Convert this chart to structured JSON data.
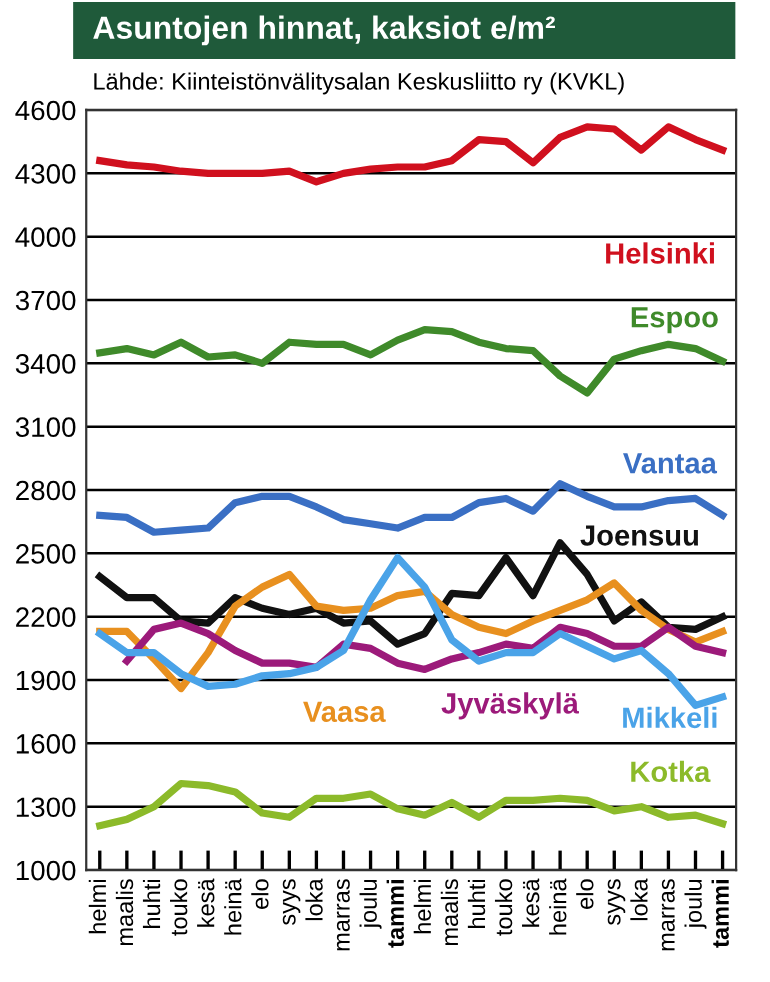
{
  "chart_data": {
    "type": "line",
    "title": "Asuntojen hinnat, kaksiot e/m²",
    "annotations": [
      "Lähde: Kiinteistönvälitysalan Keskusliitto ry (KVKL)"
    ],
    "categories": [
      "helmi",
      "maalis",
      "huhti",
      "touko",
      "kesä",
      "heinä",
      "elo",
      "syys",
      "loka",
      "marras",
      "joulu",
      "tammi",
      "helmi",
      "maalis",
      "huhti",
      "touko",
      "kesä",
      "heinä",
      "elo",
      "syys",
      "loka",
      "marras",
      "joulu",
      "tammi"
    ],
    "series": [
      {
        "name": "Helsinki",
        "color": "#d0101e",
        "values": [
          4360,
          4340,
          4330,
          4310,
          4300,
          4300,
          4300,
          4310,
          4260,
          4300,
          4320,
          4330,
          4330,
          4360,
          4460,
          4450,
          4350,
          4470,
          4520,
          4510,
          4410,
          4520,
          4460,
          4410
        ]
      },
      {
        "name": "Espoo",
        "color": "#3f8a2a",
        "values": [
          3450,
          3470,
          3440,
          3500,
          3430,
          3440,
          3400,
          3500,
          3490,
          3490,
          3440,
          3510,
          3560,
          3550,
          3500,
          3470,
          3460,
          3340,
          3260,
          3420,
          3460,
          3490,
          3470,
          3410
        ]
      },
      {
        "name": "Vantaa",
        "color": "#3a6fc4",
        "values": [
          2680,
          2670,
          2600,
          2610,
          2620,
          2740,
          2770,
          2770,
          2720,
          2660,
          2640,
          2620,
          2670,
          2670,
          2740,
          2760,
          2700,
          2830,
          2770,
          2720,
          2720,
          2750,
          2760,
          2680
        ]
      },
      {
        "name": "Joensuu",
        "color": "#111111",
        "values": [
          2390,
          2290,
          2290,
          2180,
          2170,
          2290,
          2240,
          2210,
          2240,
          2170,
          2180,
          2070,
          2120,
          2310,
          2300,
          2480,
          2300,
          2550,
          2400,
          2180,
          2270,
          2150,
          2140,
          2200
        ]
      },
      {
        "name": "Vaasa",
        "color": "#e8901f",
        "values": [
          2130,
          2130,
          2000,
          1860,
          2030,
          2250,
          2340,
          2400,
          2250,
          2230,
          2240,
          2300,
          2320,
          2210,
          2150,
          2120,
          2180,
          2230,
          2280,
          2360,
          2230,
          2140,
          2080,
          2130
        ]
      },
      {
        "name": "Jyväskylä",
        "color": "#9c1a7a",
        "values": [
          null,
          1990,
          2140,
          2170,
          2120,
          2040,
          1980,
          1980,
          1960,
          2070,
          2050,
          1980,
          1950,
          2000,
          2030,
          2070,
          2050,
          2150,
          2120,
          2060,
          2060,
          2150,
          2060,
          2030
        ]
      },
      {
        "name": "Mikkeli",
        "color": "#4aa3e8",
        "values": [
          2120,
          2030,
          2030,
          1930,
          1870,
          1880,
          1920,
          1930,
          1960,
          2040,
          2280,
          2480,
          2340,
          2090,
          1990,
          2030,
          2030,
          2120,
          2060,
          2000,
          2040,
          1930,
          1780,
          1820
        ]
      },
      {
        "name": "Kotka",
        "color": "#8cba2a",
        "values": [
          1210,
          1240,
          1300,
          1410,
          1400,
          1370,
          1270,
          1250,
          1340,
          1340,
          1360,
          1290,
          1260,
          1320,
          1250,
          1330,
          1330,
          1340,
          1330,
          1280,
          1300,
          1250,
          1260,
          1220
        ]
      }
    ],
    "ylim": [
      1000,
      4600
    ],
    "yticks": [
      1000,
      1300,
      1600,
      1900,
      2200,
      2500,
      2800,
      3100,
      3400,
      3700,
      4000,
      4300,
      4600
    ],
    "grid": "y",
    "legend": false,
    "marker": "none",
    "line_style": "solid"
  }
}
